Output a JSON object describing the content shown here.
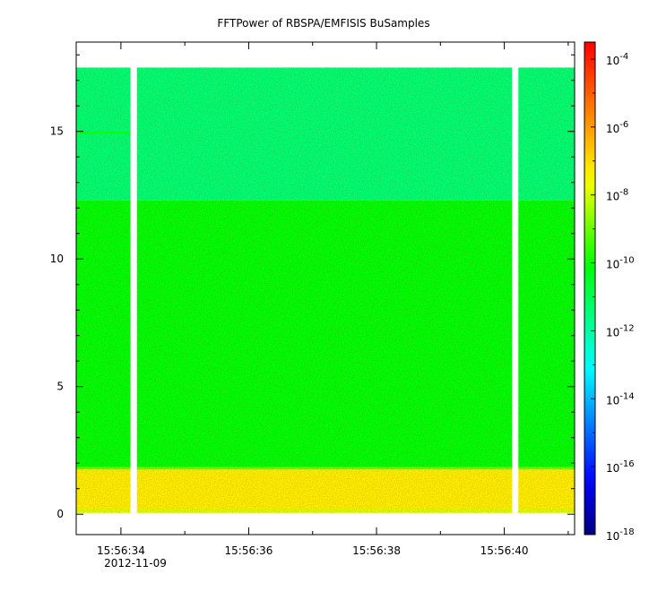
{
  "chart_data": {
    "type": "heatmap",
    "title": "FFTPower of RBSPA/EMFISIS  BuSamples",
    "xlabel": "",
    "ylabel": "",
    "x_start": "15:56:33.3",
    "x_end": "15:56:41.1",
    "x_ticks": [
      "15:56:34",
      "15:56:36",
      "15:56:38",
      "15:56:40"
    ],
    "x_tick_date": "2012-11-09",
    "x_minor_ticks": [
      "15:56:35",
      "15:56:37",
      "15:56:39",
      "15:56:41"
    ],
    "ylim": [
      -0.8,
      18.5
    ],
    "y_ticks": [
      0,
      5,
      10,
      15
    ],
    "y_minor_ticks": [
      1,
      2,
      3,
      4,
      6,
      7,
      8,
      9,
      11,
      12,
      13,
      14,
      16,
      17,
      18
    ],
    "grid": false,
    "data_time_range": [
      "15:56:33.3",
      "15:56:41.1"
    ],
    "data_freq_range": [
      0.05,
      17.5
    ],
    "gaps": [
      {
        "start": "15:56:34.15",
        "end": "15:56:34.25"
      },
      {
        "start": "15:56:40.12",
        "end": "15:56:40.22"
      }
    ],
    "bands": [
      {
        "freq_range": [
          0.05,
          0.2
        ],
        "log10_power": -7.9
      },
      {
        "freq_range": [
          0.2,
          1.75
        ],
        "log10_power": -7.3
      },
      {
        "freq_range": [
          1.75,
          1.85
        ],
        "log10_power": -9.0
      },
      {
        "freq_range": [
          1.85,
          12.3
        ],
        "log10_power": -10.1
      },
      {
        "freq_range": [
          12.3,
          17.5
        ],
        "log10_power": -11.4
      }
    ],
    "line_feature": {
      "freq": 14.95,
      "time_range": [
        "15:56:33.3",
        "15:56:34.15"
      ],
      "log10_power": -9.9
    },
    "colorbar": {
      "scale": "log",
      "range": [
        -18,
        -3.5
      ],
      "tick_exponents": [
        "-4",
        "-6",
        "-8",
        "-10",
        "-12",
        "-14",
        "-16",
        "-18"
      ],
      "tick_base": "10",
      "colormap": [
        "#00007f",
        "#0000ff",
        "#00ffff",
        "#00ff00",
        "#ffff00",
        "#ff7f00",
        "#ff0000"
      ]
    }
  }
}
